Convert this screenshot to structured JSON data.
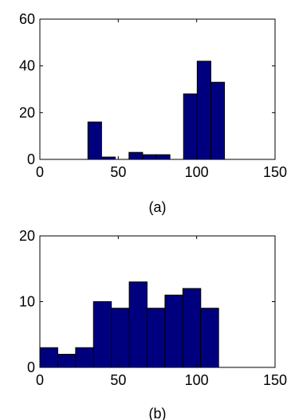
{
  "colors": {
    "bar_fill": "#00007f",
    "bar_stroke": "#000000",
    "axis": "#000000",
    "background": "#ffffff"
  },
  "chart_data": [
    {
      "type": "bar",
      "caption": "(a)",
      "title": "",
      "xlabel": "",
      "ylabel": "",
      "xlim": [
        0,
        150
      ],
      "ylim": [
        0,
        60
      ],
      "xticks": [
        0,
        50,
        100,
        150
      ],
      "yticks": [
        0,
        20,
        40,
        60
      ],
      "grid": false,
      "bin_width": 8.7,
      "bins": [
        {
          "x": 35,
          "value": 16
        },
        {
          "x": 43.7,
          "value": 1
        },
        {
          "x": 61.2,
          "value": 3
        },
        {
          "x": 69.9,
          "value": 2
        },
        {
          "x": 78.6,
          "value": 2
        },
        {
          "x": 96,
          "value": 28
        },
        {
          "x": 104.7,
          "value": 42
        },
        {
          "x": 113.4,
          "value": 33
        }
      ]
    },
    {
      "type": "bar",
      "caption": "(b)",
      "title": "",
      "xlabel": "",
      "ylabel": "",
      "xlim": [
        0,
        150
      ],
      "ylim": [
        0,
        20
      ],
      "xticks": [
        0,
        50,
        100,
        150
      ],
      "yticks": [
        0,
        10,
        20
      ],
      "grid": false,
      "bin_width": 11.4,
      "bins": [
        {
          "x": 5.7,
          "value": 3
        },
        {
          "x": 17.1,
          "value": 2
        },
        {
          "x": 28.5,
          "value": 3
        },
        {
          "x": 39.9,
          "value": 10
        },
        {
          "x": 51.3,
          "value": 9
        },
        {
          "x": 62.7,
          "value": 13
        },
        {
          "x": 74.1,
          "value": 9
        },
        {
          "x": 85.5,
          "value": 11
        },
        {
          "x": 96.9,
          "value": 12
        },
        {
          "x": 108.3,
          "value": 9
        }
      ]
    }
  ]
}
